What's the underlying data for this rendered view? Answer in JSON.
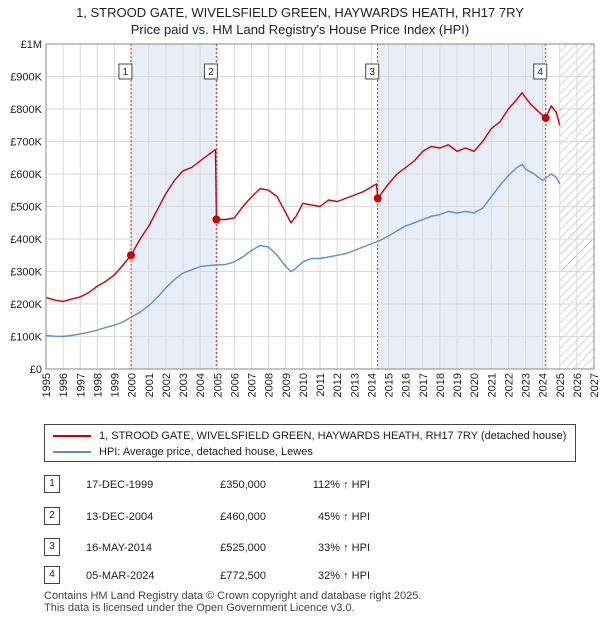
{
  "title_line1": "1, STROOD GATE, WIVELSFIELD GREEN, HAYWARDS HEATH, RH17 7RY",
  "title_line2": "Price paid vs. HM Land Registry's House Price Index (HPI)",
  "colors": {
    "property": "#cc0000",
    "hpi": "#5b8fce",
    "shade": "#e8eef8",
    "sale_line": "#cc0000"
  },
  "chart_data": {
    "type": "line",
    "x_range": [
      1995,
      2027
    ],
    "y_range": [
      0,
      1000000
    ],
    "y_ticks": [
      0,
      100000,
      200000,
      300000,
      400000,
      500000,
      600000,
      700000,
      800000,
      900000,
      1000000
    ],
    "y_tick_labels": [
      "£0",
      "£100K",
      "£200K",
      "£300K",
      "£400K",
      "£500K",
      "£600K",
      "£700K",
      "£800K",
      "£900K",
      "£1M"
    ],
    "x_ticks": [
      1995,
      1996,
      1997,
      1998,
      1999,
      2000,
      2001,
      2002,
      2003,
      2004,
      2005,
      2006,
      2007,
      2008,
      2009,
      2010,
      2011,
      2012,
      2013,
      2014,
      2015,
      2016,
      2017,
      2018,
      2019,
      2020,
      2021,
      2022,
      2023,
      2024,
      2025,
      2026,
      2027
    ],
    "x_tick_labels": [
      "1995",
      "1996",
      "1997",
      "1998",
      "1999",
      "2000",
      "2001",
      "2002",
      "2003",
      "2004",
      "2005",
      "2006",
      "2007",
      "2008",
      "2009",
      "2010",
      "2011",
      "2012",
      "2013",
      "2014",
      "2015",
      "2016",
      "2017",
      "2018",
      "2019",
      "2020",
      "2021",
      "2022",
      "2023",
      "2024",
      "2025",
      "2026",
      "2027"
    ],
    "grid": true,
    "shaded_periods": [
      [
        1999.96,
        2004.95
      ],
      [
        2014.37,
        2024.18
      ]
    ],
    "future_hatch_from": 2025.0,
    "series": [
      {
        "name": "1, STROOD GATE, WIVELSFIELD GREEN, HAYWARDS HEATH, RH17 7RY (detached house)",
        "color": "#cc0000",
        "x": [
          1995.0,
          1995.5,
          1996.0,
          1996.5,
          1997.0,
          1997.5,
          1998.0,
          1998.5,
          1999.0,
          1999.5,
          1999.96,
          2000.5,
          2001.0,
          2001.5,
          2002.0,
          2002.5,
          2003.0,
          2003.5,
          2004.0,
          2004.5,
          2004.9,
          2004.95,
          2005.5,
          2006.0,
          2006.5,
          2007.0,
          2007.5,
          2008.0,
          2008.5,
          2009.0,
          2009.3,
          2009.6,
          2010.0,
          2010.5,
          2011.0,
          2011.5,
          2012.0,
          2012.5,
          2013.0,
          2013.5,
          2014.0,
          2014.3,
          2014.37,
          2015.0,
          2015.5,
          2016.0,
          2016.5,
          2017.0,
          2017.5,
          2018.0,
          2018.5,
          2019.0,
          2019.5,
          2020.0,
          2020.5,
          2021.0,
          2021.5,
          2022.0,
          2022.5,
          2022.8,
          2023.0,
          2023.3,
          2023.6,
          2024.0,
          2024.18,
          2024.5,
          2024.8,
          2025.0
        ],
        "y": [
          220000,
          212000,
          208000,
          215000,
          222000,
          235000,
          255000,
          270000,
          290000,
          320000,
          350000,
          400000,
          440000,
          490000,
          540000,
          580000,
          610000,
          620000,
          640000,
          660000,
          675000,
          460000,
          460000,
          465000,
          500000,
          530000,
          555000,
          550000,
          530000,
          480000,
          450000,
          470000,
          510000,
          505000,
          500000,
          520000,
          515000,
          525000,
          535000,
          545000,
          560000,
          570000,
          525000,
          570000,
          600000,
          620000,
          640000,
          670000,
          685000,
          680000,
          690000,
          670000,
          680000,
          670000,
          700000,
          740000,
          760000,
          800000,
          830000,
          850000,
          835000,
          815000,
          800000,
          780000,
          772500,
          810000,
          790000,
          750000
        ]
      },
      {
        "name": "HPI: Average price, detached house, Lewes",
        "color": "#5b8fce",
        "x": [
          1995.0,
          1995.5,
          1996.0,
          1996.5,
          1997.0,
          1997.5,
          1998.0,
          1998.5,
          1999.0,
          1999.5,
          2000.0,
          2000.5,
          2001.0,
          2001.5,
          2002.0,
          2002.5,
          2003.0,
          2003.5,
          2004.0,
          2004.5,
          2005.0,
          2005.5,
          2006.0,
          2006.5,
          2007.0,
          2007.5,
          2008.0,
          2008.5,
          2009.0,
          2009.3,
          2009.6,
          2010.0,
          2010.5,
          2011.0,
          2011.5,
          2012.0,
          2012.5,
          2013.0,
          2013.5,
          2014.0,
          2014.5,
          2015.0,
          2015.5,
          2016.0,
          2016.5,
          2017.0,
          2017.5,
          2018.0,
          2018.5,
          2019.0,
          2019.5,
          2020.0,
          2020.5,
          2021.0,
          2021.5,
          2022.0,
          2022.5,
          2022.8,
          2023.0,
          2023.5,
          2024.0,
          2024.5,
          2024.8,
          2025.0
        ],
        "y": [
          103000,
          101000,
          100000,
          103000,
          108000,
          113000,
          120000,
          128000,
          135000,
          145000,
          160000,
          175000,
          195000,
          220000,
          250000,
          275000,
          295000,
          305000,
          315000,
          318000,
          320000,
          322000,
          330000,
          345000,
          365000,
          380000,
          375000,
          350000,
          315000,
          300000,
          310000,
          330000,
          340000,
          340000,
          345000,
          350000,
          355000,
          365000,
          375000,
          385000,
          395000,
          410000,
          425000,
          440000,
          450000,
          460000,
          470000,
          475000,
          485000,
          480000,
          485000,
          480000,
          495000,
          530000,
          565000,
          595000,
          620000,
          630000,
          615000,
          600000,
          580000,
          600000,
          590000,
          570000
        ]
      }
    ],
    "sale_markers": [
      {
        "label": "1",
        "x": 1999.96,
        "y": 350000
      },
      {
        "label": "2",
        "x": 2004.95,
        "y": 460000
      },
      {
        "label": "3",
        "x": 2014.37,
        "y": 525000
      },
      {
        "label": "4",
        "x": 2024.18,
        "y": 772500
      }
    ]
  },
  "legend": {
    "property_label": "1, STROOD GATE, WIVELSFIELD GREEN, HAYWARDS HEATH, RH17 7RY (detached house)",
    "hpi_label": "HPI: Average price, detached house, Lewes"
  },
  "sales": [
    {
      "num": "1",
      "date": "17-DEC-1999",
      "price": "£350,000",
      "hpi": "112% ↑ HPI"
    },
    {
      "num": "2",
      "date": "13-DEC-2004",
      "price": "£460,000",
      "hpi": "45% ↑ HPI"
    },
    {
      "num": "3",
      "date": "16-MAY-2014",
      "price": "£525,000",
      "hpi": "33% ↑ HPI"
    },
    {
      "num": "4",
      "date": "05-MAR-2024",
      "price": "£772,500",
      "hpi": "32% ↑ HPI"
    }
  ],
  "footer_line1": "Contains HM Land Registry data © Crown copyright and database right 2025.",
  "footer_line2": "This data is licensed under the Open Government Licence v3.0."
}
